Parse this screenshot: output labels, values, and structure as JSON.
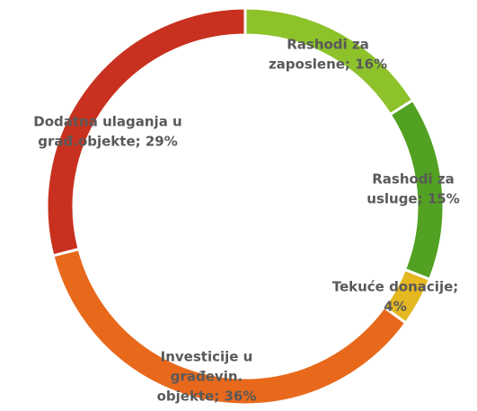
{
  "chart_data": {
    "type": "donut",
    "values": [
      16,
      15,
      4,
      36,
      29
    ],
    "value_labels": [
      [
        "Rashodi za",
        "zaposlene; 16%"
      ],
      [
        "Rashodi za",
        "usluge; 15%"
      ],
      [
        "Tekuće donacije;",
        "4%"
      ],
      [
        "Investicije u",
        "građevin.",
        "objekte; 36%"
      ],
      [
        "Dodatna ulaganja u",
        "građ.objekte; 29%"
      ]
    ],
    "colors": [
      "#8dc22b",
      "#52a122",
      "#e5b822",
      "#e8691b",
      "#c8311f"
    ]
  }
}
